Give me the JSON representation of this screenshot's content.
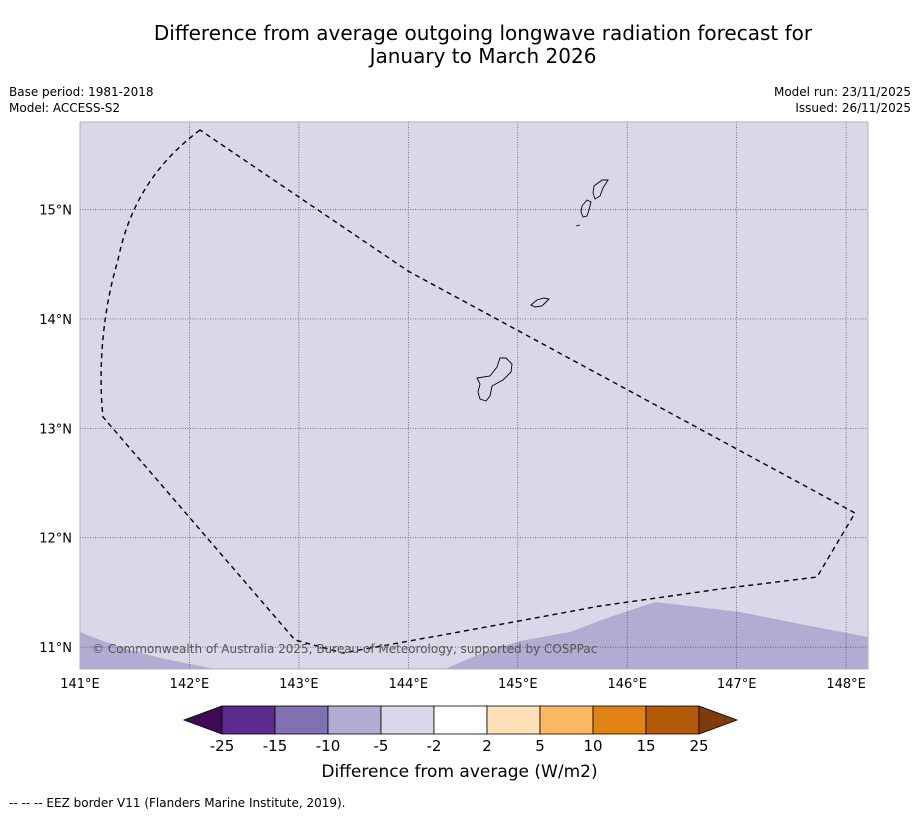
{
  "header": {
    "title_line1": "Difference from average outgoing longwave radiation forecast for",
    "title_line2": "January to March 2026",
    "base_period": "Base period: 1981-2018",
    "model": "Model: ACCESS-S2",
    "model_run": "Model run: 23/11/2025",
    "issued": "Issued: 26/11/2025"
  },
  "map": {
    "lon_range": [
      141.0,
      148.2
    ],
    "lat_range": [
      10.8,
      15.8
    ],
    "lon_ticks": [
      {
        "value": 141,
        "label": "141°E"
      },
      {
        "value": 142,
        "label": "142°E"
      },
      {
        "value": 143,
        "label": "143°E"
      },
      {
        "value": 144,
        "label": "144°E"
      },
      {
        "value": 145,
        "label": "145°E"
      },
      {
        "value": 146,
        "label": "146°E"
      },
      {
        "value": 147,
        "label": "147°E"
      },
      {
        "value": 148,
        "label": "148°E"
      }
    ],
    "lat_ticks": [
      {
        "value": 15,
        "label": "15°N"
      },
      {
        "value": 14,
        "label": "14°N"
      },
      {
        "value": 13,
        "label": "13°N"
      },
      {
        "value": 12,
        "label": "12°N"
      },
      {
        "value": 11,
        "label": "11°N"
      }
    ],
    "background_anomaly_range": "-5 to -2",
    "background_color": "#d8d8e9",
    "lower_anomaly_range": "-10 to -5",
    "lower_region_color": "#b2abd2",
    "copyright": "© Commonwealth of Australia 2025, Bureau of Meteorology, supported by COSPPac"
  },
  "colorbar": {
    "colors": [
      "#3f0b55",
      "#5c2a8f",
      "#8072b1",
      "#b2abd2",
      "#d8d8e9",
      "#ffffff",
      "#fee0b6",
      "#fdb863",
      "#e08214",
      "#b35806",
      "#7f3b08"
    ],
    "tick_labels": [
      "-25",
      "-15",
      "-10",
      "-5",
      "-2",
      "2",
      "5",
      "10",
      "15",
      "25"
    ],
    "label": "Difference from average (W/m2)"
  },
  "footnote": "--  --  -- EEZ border V11 (Flanders Marine Institute, 2019)."
}
